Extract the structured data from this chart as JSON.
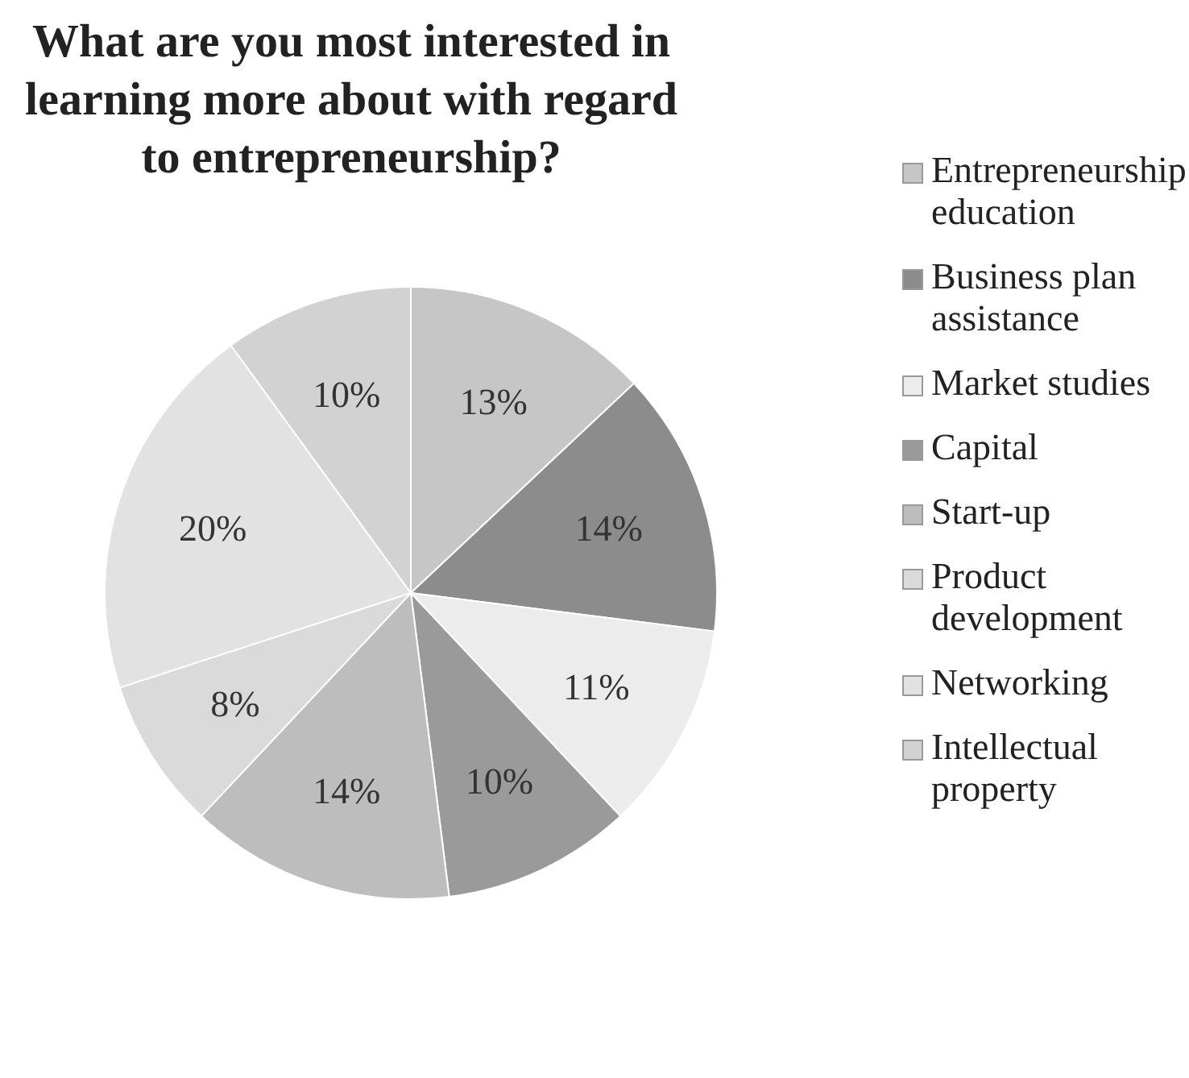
{
  "chart_data": {
    "type": "pie",
    "title": "What are you most interested in learning more about with regard to entrepreneurship?",
    "categories": [
      "Entrepreneurship education",
      "Business plan assistance",
      "Market studies",
      "Capital",
      "Start-up",
      "Product development",
      "Networking",
      "Intellectual property"
    ],
    "values": [
      13,
      14,
      11,
      10,
      14,
      8,
      20,
      10
    ],
    "value_labels": [
      "13%",
      "14%",
      "11%",
      "10%",
      "14%",
      "8%",
      "20%",
      "10%"
    ],
    "colors": [
      "#c6c6c6",
      "#8c8c8c",
      "#ececec",
      "#9a9a9a",
      "#bdbdbd",
      "#dadada",
      "#e2e2e2",
      "#d2d2d2"
    ],
    "legend": "right"
  }
}
